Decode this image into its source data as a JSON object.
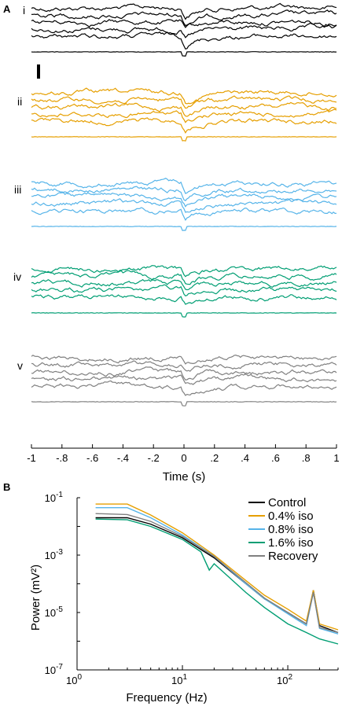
{
  "colors": {
    "control": "#000000",
    "iso04": "#E69F00",
    "iso08": "#56B4E9",
    "iso16": "#009E73",
    "recovery": "#808080"
  },
  "panel_labels": [
    "A",
    "B"
  ],
  "chart_data": [
    {
      "type": "line",
      "panel": "A",
      "xlabel": "Time (s)",
      "xlim": [
        -1,
        1
      ],
      "x_ticks": [
        "-1",
        "-.8",
        "-.6",
        "-.4",
        "-.2",
        "0",
        ".2",
        ".4",
        ".6",
        ".8",
        "1"
      ],
      "grid": false,
      "series": [
        {
          "name": "i",
          "color": "#000000",
          "traces": 5,
          "avg_trace": true
        },
        {
          "name": "ii",
          "color": "#E69F00",
          "traces": 5,
          "avg_trace": true
        },
        {
          "name": "iii",
          "color": "#56B4E9",
          "traces": 5,
          "avg_trace": true
        },
        {
          "name": "iv",
          "color": "#009E73",
          "traces": 5,
          "avg_trace": true
        },
        {
          "name": "v",
          "color": "#808080",
          "traces": 5,
          "avg_trace": true
        }
      ]
    },
    {
      "type": "line",
      "panel": "B",
      "xlabel": "Frequency (Hz)",
      "ylabel": "Power (mV²)",
      "x_scale": "log",
      "y_scale": "log",
      "xlim": [
        1,
        300
      ],
      "ylim": [
        1e-07,
        0.1
      ],
      "x_ticks": [
        {
          "base": "10",
          "exp": "0"
        },
        {
          "base": "10",
          "exp": "1"
        },
        {
          "base": "10",
          "exp": "2"
        }
      ],
      "y_ticks": [
        {
          "base": "10",
          "exp": "-1"
        },
        {
          "base": "10",
          "exp": "-3"
        },
        {
          "base": "10",
          "exp": "-5"
        },
        {
          "base": "10",
          "exp": "-7"
        }
      ],
      "legend_position": "top-right",
      "grid": false,
      "series": [
        {
          "name": "Control",
          "color": "#000000",
          "x": [
            1.5,
            3,
            5,
            10,
            20,
            40,
            60,
            100,
            150,
            175,
            200,
            300
          ],
          "y": [
            0.02,
            0.02,
            0.012,
            0.004,
            0.0008,
            0.0001,
            3e-05,
            1e-05,
            4e-06,
            6e-05,
            3.5e-06,
            2e-06
          ]
        },
        {
          "name": "0.4% iso",
          "color": "#E69F00",
          "x": [
            1.5,
            3,
            5,
            10,
            20,
            40,
            60,
            100,
            150,
            175,
            200,
            300
          ],
          "y": [
            0.06,
            0.06,
            0.025,
            0.006,
            0.001,
            0.00013,
            4e-05,
            1.3e-05,
            5e-06,
            6e-05,
            4e-06,
            2.5e-06
          ]
        },
        {
          "name": "0.8% iso",
          "color": "#56B4E9",
          "x": [
            1.5,
            3,
            5,
            10,
            20,
            40,
            60,
            100,
            150,
            175,
            200,
            300
          ],
          "y": [
            0.045,
            0.045,
            0.02,
            0.005,
            0.0009,
            0.0001,
            3e-05,
            9e-06,
            3.5e-06,
            5e-05,
            2.8e-06,
            1.8e-06
          ]
        },
        {
          "name": "1.6% iso",
          "color": "#009E73",
          "x": [
            1.5,
            3,
            5,
            10,
            15,
            18,
            20,
            40,
            60,
            100,
            150,
            200,
            300
          ],
          "y": [
            0.018,
            0.017,
            0.01,
            0.0035,
            0.0013,
            0.0003,
            0.0005,
            5e-05,
            1.5e-05,
            4e-06,
            2e-06,
            1.2e-06,
            8e-07
          ]
        },
        {
          "name": "Recovery",
          "color": "#808080",
          "x": [
            1.5,
            3,
            5,
            10,
            20,
            40,
            60,
            100,
            150,
            175,
            200,
            300
          ],
          "y": [
            0.028,
            0.026,
            0.015,
            0.0045,
            0.0009,
            0.00011,
            3.2e-05,
            1e-05,
            4e-06,
            5e-05,
            3e-06,
            2e-06
          ]
        }
      ]
    }
  ]
}
